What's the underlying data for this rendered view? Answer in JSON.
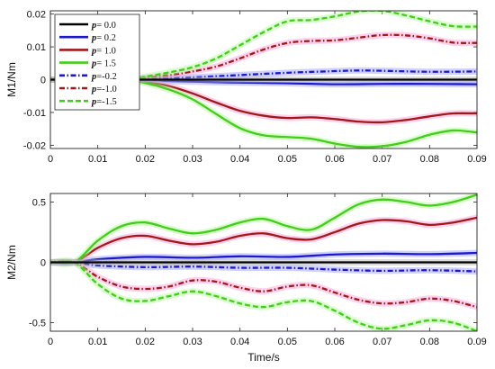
{
  "chart_data": [
    {
      "type": "line",
      "ylabel": "M1/Nm",
      "xlabel": "",
      "xlim": [
        0,
        0.09
      ],
      "ylim": [
        -0.021,
        0.021
      ],
      "xticks": [
        0,
        0.01,
        0.02,
        0.03,
        0.04,
        0.05,
        0.06,
        0.07,
        0.08,
        0.09
      ],
      "xtick_labels": [
        "0",
        "0.01",
        "0.02",
        "0.03",
        "0.04",
        "0.05",
        "0.06",
        "0.07",
        "0.08",
        "0.09"
      ],
      "yticks": [
        -0.02,
        -0.01,
        0,
        0.01,
        0.02
      ],
      "ytick_labels": [
        "-0.02",
        "-0.01",
        "0",
        "0.01",
        "0.02"
      ],
      "legend": {
        "placement": "top-left"
      },
      "series": [
        {
          "name": "p= 0.0",
          "color": "#000000",
          "dash": "solid",
          "x": [
            0,
            0.015,
            0.03,
            0.045,
            0.06,
            0.075,
            0.09
          ],
          "y": [
            0,
            0,
            0,
            0,
            0,
            0,
            0
          ]
        },
        {
          "name": "p= 0.2",
          "color": "#1a1acc",
          "dash": "solid",
          "x": [
            0,
            0.015,
            0.02,
            0.03,
            0.04,
            0.05,
            0.06,
            0.07,
            0.08,
            0.09
          ],
          "y": [
            0,
            0,
            -0.0002,
            -0.0006,
            -0.0009,
            -0.0011,
            -0.0014,
            -0.0013,
            -0.0013,
            -0.0014
          ]
        },
        {
          "name": "p= 1.0",
          "color": "#a01818",
          "dash": "solid",
          "x": [
            0,
            0.015,
            0.02,
            0.025,
            0.03,
            0.035,
            0.04,
            0.045,
            0.05,
            0.055,
            0.06,
            0.065,
            0.07,
            0.075,
            0.08,
            0.085,
            0.09
          ],
          "y": [
            0,
            0,
            -0.0007,
            -0.002,
            -0.0042,
            -0.007,
            -0.0095,
            -0.011,
            -0.0117,
            -0.0115,
            -0.012,
            -0.0128,
            -0.013,
            -0.0123,
            -0.0112,
            -0.0103,
            -0.0103
          ]
        },
        {
          "name": "p= 1.5",
          "color": "#44cc1a",
          "dash": "solid",
          "x": [
            0,
            0.015,
            0.02,
            0.025,
            0.03,
            0.035,
            0.04,
            0.045,
            0.05,
            0.055,
            0.06,
            0.065,
            0.07,
            0.075,
            0.08,
            0.085,
            0.09
          ],
          "y": [
            0,
            0,
            -0.001,
            -0.003,
            -0.006,
            -0.0105,
            -0.0148,
            -0.017,
            -0.0175,
            -0.018,
            -0.0195,
            -0.0205,
            -0.0203,
            -0.019,
            -0.0168,
            -0.0155,
            -0.0161
          ]
        },
        {
          "name": "p=-0.2",
          "color": "#1a1acc",
          "dash": "dashdot",
          "x": [
            0,
            0.015,
            0.02,
            0.03,
            0.04,
            0.05,
            0.06,
            0.065,
            0.07,
            0.08,
            0.09
          ],
          "y": [
            0,
            0,
            0.0002,
            0.0007,
            0.0014,
            0.0021,
            0.0026,
            0.0028,
            0.0027,
            0.0024,
            0.0025
          ]
        },
        {
          "name": "p=-1.0",
          "color": "#a01818",
          "dash": "dashdot",
          "x": [
            0,
            0.015,
            0.02,
            0.025,
            0.03,
            0.035,
            0.04,
            0.045,
            0.05,
            0.055,
            0.06,
            0.065,
            0.07,
            0.075,
            0.08,
            0.085,
            0.09
          ],
          "y": [
            0,
            0,
            0.0006,
            0.0014,
            0.0025,
            0.004,
            0.0065,
            0.0092,
            0.0112,
            0.0118,
            0.012,
            0.0128,
            0.0136,
            0.0135,
            0.0126,
            0.0113,
            0.0112
          ]
        },
        {
          "name": "p=-1.5",
          "color": "#44cc1a",
          "dash": "dashed",
          "x": [
            0,
            0.015,
            0.02,
            0.025,
            0.03,
            0.035,
            0.04,
            0.045,
            0.05,
            0.055,
            0.06,
            0.065,
            0.07,
            0.075,
            0.08,
            0.085,
            0.09
          ],
          "y": [
            0,
            0,
            0.0009,
            0.0022,
            0.0038,
            0.0065,
            0.0105,
            0.0145,
            0.0178,
            0.0182,
            0.0193,
            0.0208,
            0.021,
            0.0196,
            0.0178,
            0.0163,
            0.0162
          ]
        }
      ]
    },
    {
      "type": "line",
      "ylabel": "M2/Nm",
      "xlabel": "Time/s",
      "xlim": [
        0,
        0.09
      ],
      "ylim": [
        -0.57,
        0.57
      ],
      "xticks": [
        0,
        0.01,
        0.02,
        0.03,
        0.04,
        0.05,
        0.06,
        0.07,
        0.08,
        0.09
      ],
      "xtick_labels": [
        "0",
        "0.01",
        "0.02",
        "0.03",
        "0.04",
        "0.05",
        "0.06",
        "0.07",
        "0.08",
        "0.09"
      ],
      "yticks": [
        -0.5,
        0,
        0.5
      ],
      "ytick_labels": [
        "-0.5",
        "0",
        "0.5"
      ],
      "series": [
        {
          "name": "p= 0.0",
          "color": "#000000",
          "dash": "solid",
          "x": [
            0,
            0.045,
            0.09
          ],
          "y": [
            0,
            0,
            0
          ]
        },
        {
          "name": "p= 0.2",
          "color": "#1a1acc",
          "dash": "solid",
          "x": [
            0,
            0.005,
            0.01,
            0.02,
            0.03,
            0.04,
            0.05,
            0.06,
            0.07,
            0.08,
            0.09
          ],
          "y": [
            0,
            0,
            0.025,
            0.045,
            0.038,
            0.05,
            0.045,
            0.065,
            0.072,
            0.068,
            0.078
          ]
        },
        {
          "name": "p= 1.0",
          "color": "#a01818",
          "dash": "solid",
          "x": [
            0,
            0.005,
            0.01,
            0.015,
            0.02,
            0.025,
            0.03,
            0.035,
            0.04,
            0.045,
            0.05,
            0.055,
            0.06,
            0.065,
            0.07,
            0.075,
            0.08,
            0.085,
            0.09
          ],
          "y": [
            0,
            0,
            0.12,
            0.2,
            0.22,
            0.18,
            0.15,
            0.17,
            0.22,
            0.24,
            0.2,
            0.19,
            0.25,
            0.32,
            0.35,
            0.34,
            0.31,
            0.33,
            0.37
          ]
        },
        {
          "name": "p= 1.5",
          "color": "#44cc1a",
          "dash": "solid",
          "x": [
            0,
            0.005,
            0.01,
            0.015,
            0.02,
            0.025,
            0.03,
            0.035,
            0.04,
            0.045,
            0.05,
            0.055,
            0.06,
            0.065,
            0.07,
            0.075,
            0.08,
            0.085,
            0.09
          ],
          "y": [
            0,
            0,
            0.18,
            0.3,
            0.33,
            0.28,
            0.24,
            0.27,
            0.33,
            0.36,
            0.3,
            0.27,
            0.37,
            0.48,
            0.52,
            0.5,
            0.47,
            0.5,
            0.56
          ]
        },
        {
          "name": "p=-0.2",
          "color": "#1a1acc",
          "dash": "dashdot",
          "x": [
            0,
            0.005,
            0.01,
            0.02,
            0.03,
            0.04,
            0.05,
            0.06,
            0.07,
            0.08,
            0.09
          ],
          "y": [
            0,
            0,
            -0.025,
            -0.04,
            -0.035,
            -0.045,
            -0.045,
            -0.06,
            -0.07,
            -0.065,
            -0.075
          ]
        },
        {
          "name": "p=-1.0",
          "color": "#a01818",
          "dash": "dashdot",
          "x": [
            0,
            0.005,
            0.01,
            0.015,
            0.02,
            0.025,
            0.03,
            0.035,
            0.04,
            0.045,
            0.05,
            0.055,
            0.06,
            0.065,
            0.07,
            0.075,
            0.08,
            0.085,
            0.09
          ],
          "y": [
            0,
            0,
            -0.12,
            -0.2,
            -0.22,
            -0.2,
            -0.15,
            -0.16,
            -0.21,
            -0.24,
            -0.2,
            -0.19,
            -0.25,
            -0.31,
            -0.34,
            -0.33,
            -0.3,
            -0.32,
            -0.37
          ]
        },
        {
          "name": "p=-1.5",
          "color": "#44cc1a",
          "dash": "dashed",
          "x": [
            0,
            0.005,
            0.01,
            0.015,
            0.02,
            0.025,
            0.03,
            0.035,
            0.04,
            0.045,
            0.05,
            0.055,
            0.06,
            0.065,
            0.07,
            0.075,
            0.08,
            0.085,
            0.09
          ],
          "y": [
            0,
            0,
            -0.18,
            -0.3,
            -0.32,
            -0.28,
            -0.24,
            -0.28,
            -0.34,
            -0.37,
            -0.33,
            -0.32,
            -0.4,
            -0.5,
            -0.55,
            -0.52,
            -0.48,
            -0.5,
            -0.57
          ]
        }
      ]
    }
  ]
}
